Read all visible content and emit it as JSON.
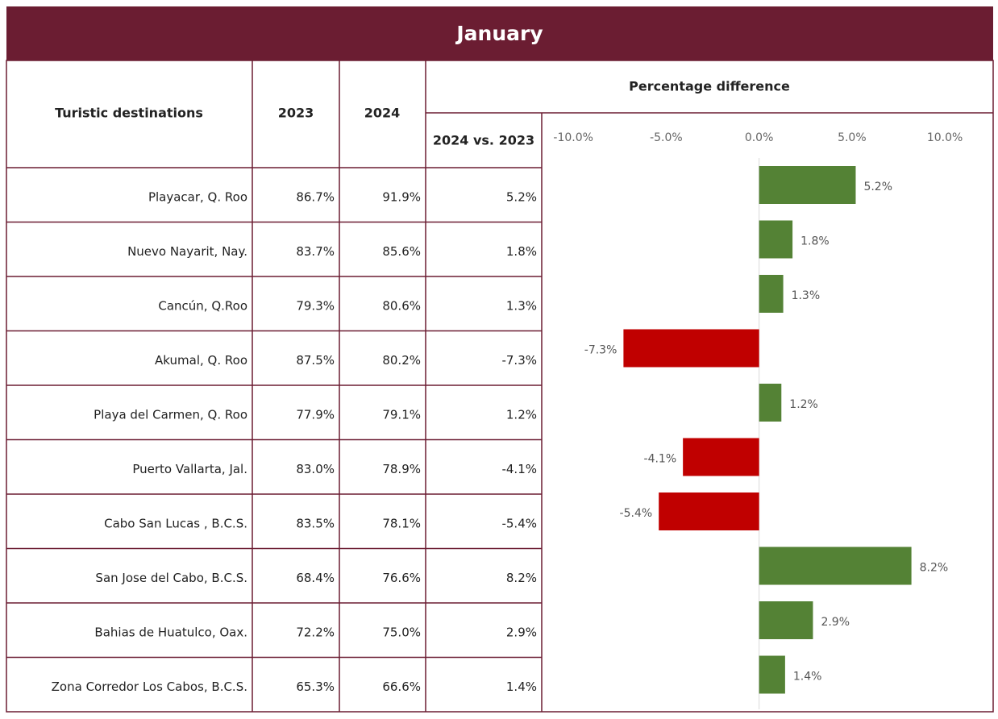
{
  "table": {
    "columns": [
      "Turistic destinations",
      "2023",
      "2024",
      "2024 vs. 2023"
    ],
    "group_header": "Percentage difference",
    "rows": [
      [
        "86.7%",
        "91.9%"
      ],
      [
        "83.7%",
        "85.6%"
      ],
      [
        "79.3%",
        "80.6%"
      ],
      [
        "87.5%",
        "80.2%"
      ],
      [
        "77.9%",
        "79.1%"
      ],
      [
        "83.0%",
        "78.9%"
      ],
      [
        "83.5%",
        "78.1%"
      ],
      [
        "68.4%",
        "76.6%"
      ],
      [
        "72.2%",
        "75.0%"
      ],
      [
        "65.3%",
        "66.6%"
      ]
    ]
  },
  "chart_data": {
    "type": "bar",
    "orientation": "horizontal",
    "title": "January",
    "categories": [
      "Playacar, Q. Roo",
      "Nuevo Nayarit, Nay.",
      "Cancún, Q.Roo",
      "Akumal, Q. Roo",
      "Playa del Carmen, Q. Roo",
      "Puerto Vallarta, Jal.",
      "Cabo San Lucas , B.C.S.",
      "San Jose del Cabo, B.C.S.",
      "Bahias de Huatulco, Oax.",
      "Zona Corredor Los Cabos, B.C.S."
    ],
    "values": [
      5.2,
      1.8,
      1.3,
      -7.3,
      1.2,
      -4.1,
      -5.4,
      8.2,
      2.9,
      1.4
    ],
    "value_labels": [
      "5.2%",
      "1.8%",
      "1.3%",
      "-7.3%",
      "1.2%",
      "-4.1%",
      "-5.4%",
      "8.2%",
      "2.9%",
      "1.4%"
    ],
    "positive_color": "#548235",
    "negative_color": "#c00000",
    "xlim": [
      -11.7,
      12.6
    ],
    "xticks": [
      {
        "value": -10,
        "label": "-10.0%"
      },
      {
        "value": -5,
        "label": "-5.0%"
      },
      {
        "value": 0,
        "label": "0.0%"
      },
      {
        "value": 5,
        "label": "5.0%"
      },
      {
        "value": 10,
        "label": "10.0%"
      }
    ]
  }
}
